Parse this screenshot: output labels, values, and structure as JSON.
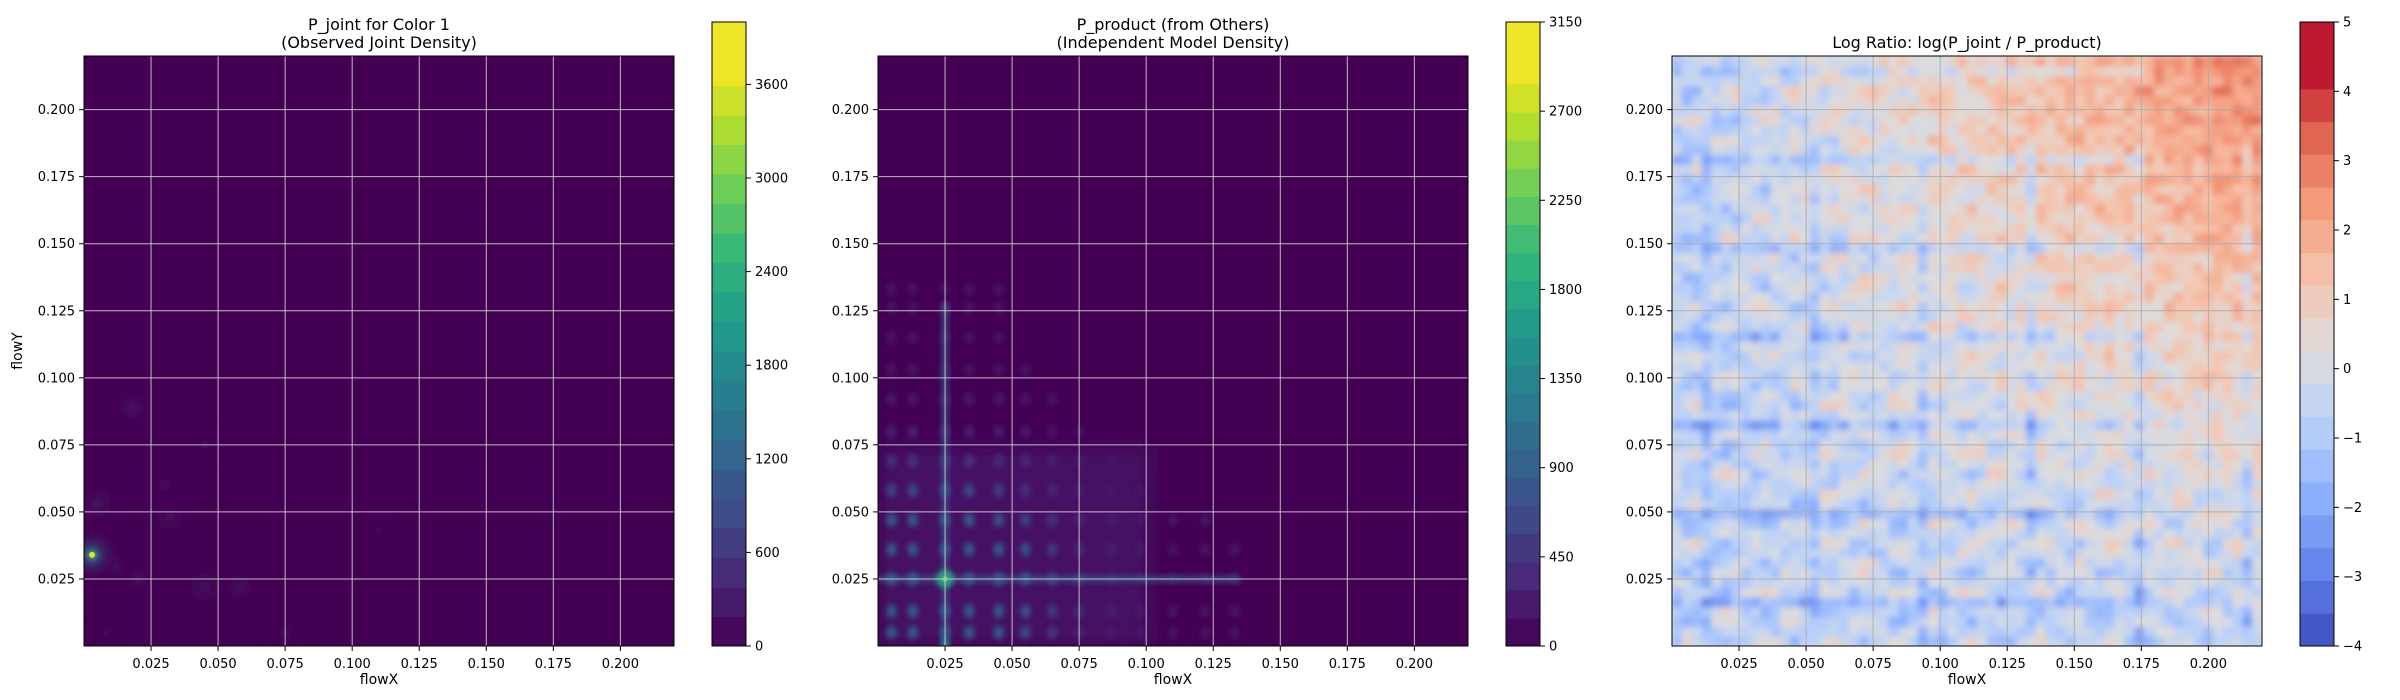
{
  "chart_data": [
    {
      "type": "heatmap",
      "title": "P_joint for Color 1",
      "subtitle": "(Observed Joint Density)",
      "xlabel": "flowX",
      "ylabel": "flowY",
      "xlim": [
        0.0,
        0.22
      ],
      "ylim": [
        0.0,
        0.22
      ],
      "x_ticks": [
        "0.025",
        "0.050",
        "0.075",
        "0.100",
        "0.125",
        "0.150",
        "0.175",
        "0.200"
      ],
      "y_ticks": [
        "0.025",
        "0.050",
        "0.075",
        "0.100",
        "0.125",
        "0.150",
        "0.175",
        "0.200"
      ],
      "grid": true,
      "colormap": "viridis",
      "colorbar": {
        "range": [
          0,
          4000
        ],
        "ticks": [
          "0",
          "600",
          "1200",
          "1800",
          "2400",
          "3000",
          "3600"
        ],
        "levels": 20
      },
      "background_color": "#440154",
      "hotspots": [
        {
          "x": 0.003,
          "y": 0.034,
          "value": 2600
        },
        {
          "x": 0.018,
          "y": 0.089,
          "value": 250
        },
        {
          "x": 0.005,
          "y": 0.053,
          "value": 200
        },
        {
          "x": 0.02,
          "y": 0.025,
          "value": 180
        },
        {
          "x": 0.032,
          "y": 0.048,
          "value": 160
        },
        {
          "x": 0.045,
          "y": 0.022,
          "value": 130
        },
        {
          "x": 0.012,
          "y": 0.03,
          "value": 150
        },
        {
          "x": 0.058,
          "y": 0.022,
          "value": 120
        },
        {
          "x": 0.075,
          "y": 0.005,
          "value": 110
        },
        {
          "x": 0.11,
          "y": 0.043,
          "value": 100
        },
        {
          "x": 0.045,
          "y": 0.075,
          "value": 90
        },
        {
          "x": 0.03,
          "y": 0.06,
          "value": 100
        },
        {
          "x": 0.008,
          "y": 0.005,
          "value": 90
        }
      ]
    },
    {
      "type": "heatmap",
      "title": "P_product (from Others)",
      "subtitle": "(Independent Model Density)",
      "xlabel": "flowX",
      "ylabel": "",
      "xlim": [
        0.0,
        0.22
      ],
      "ylim": [
        0.0,
        0.22
      ],
      "x_ticks": [
        "0.025",
        "0.050",
        "0.075",
        "0.100",
        "0.125",
        "0.150",
        "0.175",
        "0.200"
      ],
      "y_ticks": [
        "0.025",
        "0.050",
        "0.075",
        "0.100",
        "0.125",
        "0.150",
        "0.175",
        "0.200"
      ],
      "grid": true,
      "colormap": "viridis",
      "colorbar": {
        "range": [
          0,
          3150
        ],
        "ticks": [
          "0",
          "450",
          "900",
          "1350",
          "1800",
          "2250",
          "2700",
          "3150"
        ],
        "levels": 21
      },
      "background_color": "#440154",
      "marginal_peaks_x": [
        0.025
      ],
      "marginal_peaks_y": [
        0.025
      ],
      "peak_value": 2300,
      "spread_region": {
        "x": [
          0.0,
          0.135
        ],
        "y": [
          0.0,
          0.135
        ]
      }
    },
    {
      "type": "heatmap",
      "title": "Log Ratio: log(P_joint / P_product)",
      "subtitle": "",
      "xlabel": "flowX",
      "ylabel": "",
      "xlim": [
        0.0,
        0.22
      ],
      "ylim": [
        0.0,
        0.22
      ],
      "x_ticks": [
        "0.025",
        "0.050",
        "0.075",
        "0.100",
        "0.125",
        "0.150",
        "0.175",
        "0.200"
      ],
      "y_ticks": [
        "0.025",
        "0.050",
        "0.075",
        "0.100",
        "0.125",
        "0.150",
        "0.175",
        "0.200"
      ],
      "grid": true,
      "colormap": "coolwarm",
      "colorbar": {
        "range": [
          -4,
          5
        ],
        "ticks": [
          "−4",
          "−3",
          "−2",
          "−1",
          "0",
          "1",
          "2",
          "3",
          "4",
          "5"
        ],
        "levels": 18
      },
      "trend": "log ratio rises toward the upper-right corner (up to about 4), scattered negative bands near the lower-left"
    }
  ]
}
